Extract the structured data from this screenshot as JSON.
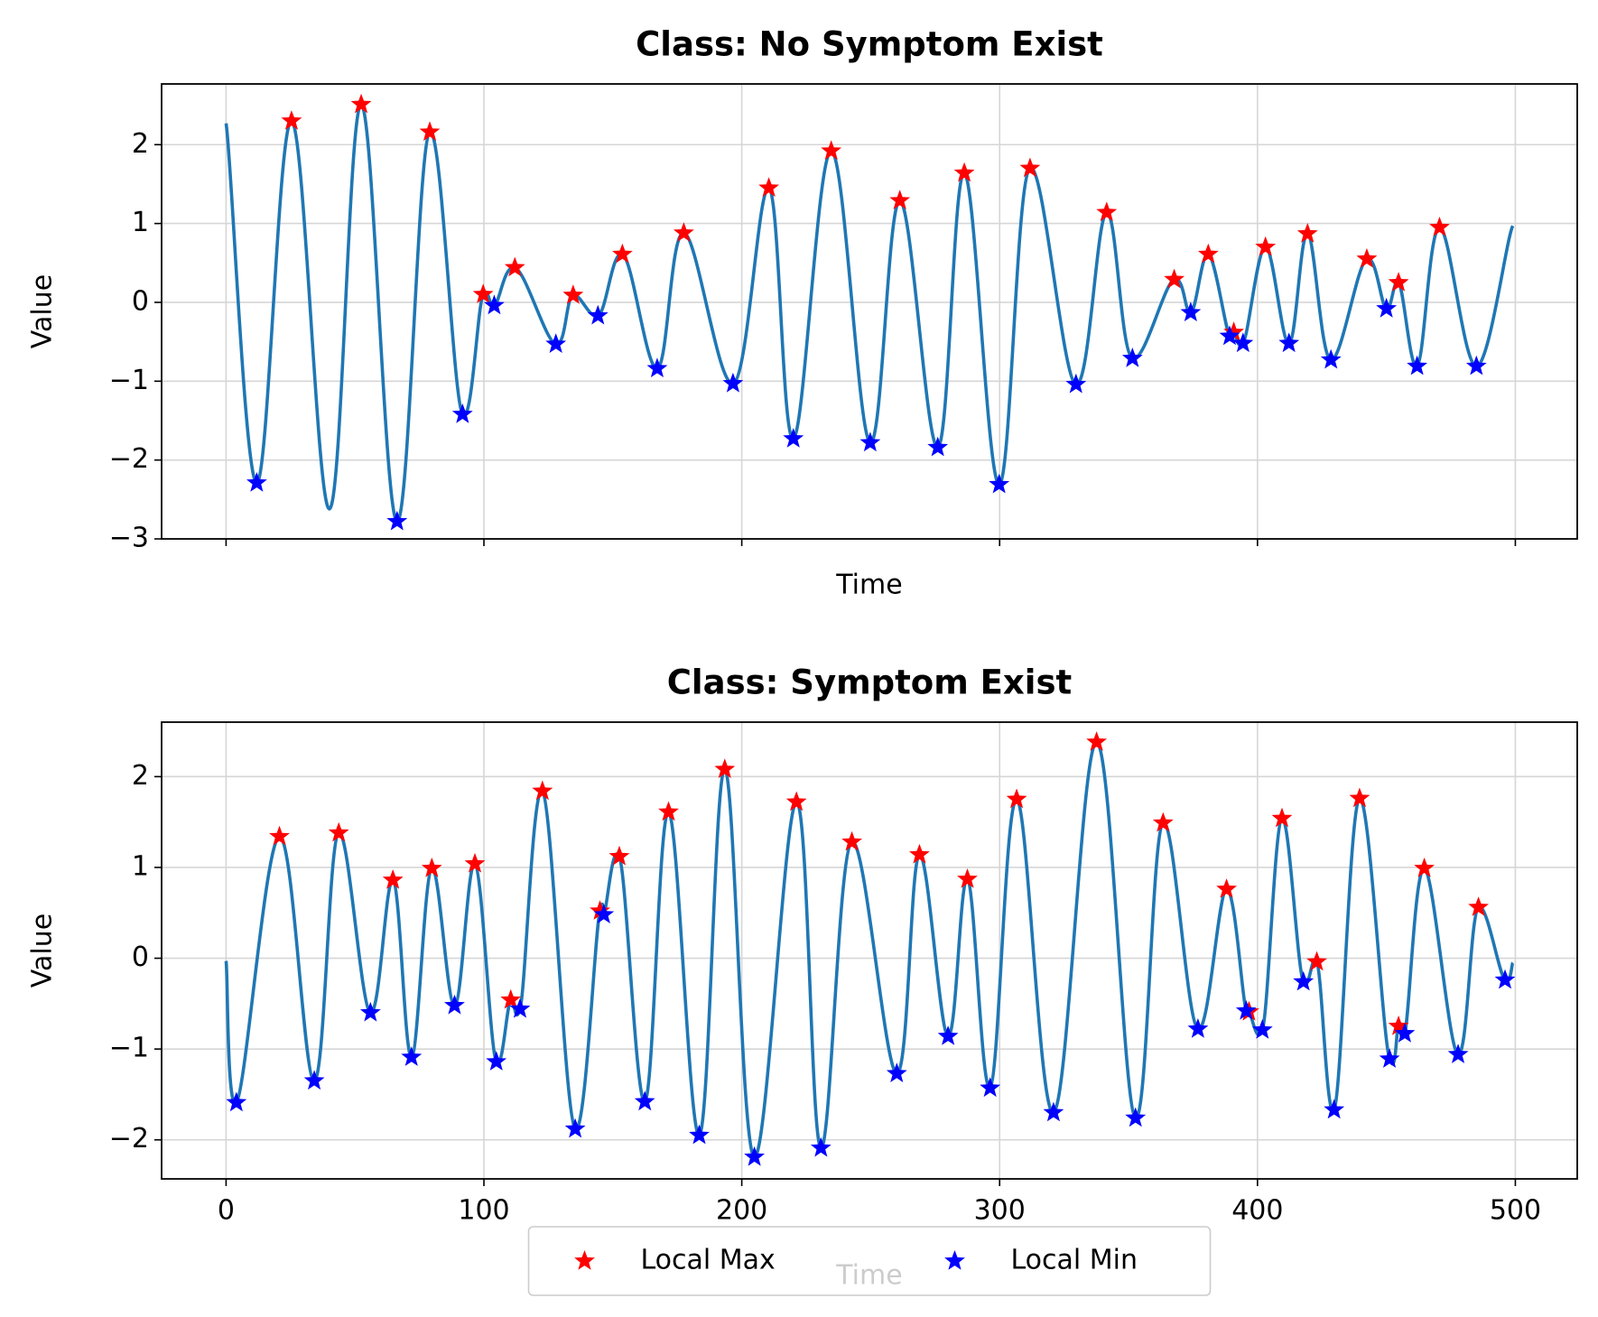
{
  "chart_data": [
    {
      "type": "line",
      "title": "Class: No Symptom Exist",
      "xlabel": "Time",
      "ylabel": "Value",
      "xlim": [
        -25,
        524
      ],
      "ylim": [
        -3,
        2.77
      ],
      "xticks": [
        0,
        100,
        200,
        300,
        400,
        500
      ],
      "xtick_labels": false,
      "yticks": [
        {
          "value": -3,
          "label": "−3"
        },
        {
          "value": -2,
          "label": "−2"
        },
        {
          "value": -1,
          "label": "−1"
        },
        0,
        1,
        2
      ],
      "grid": true,
      "series": [
        {
          "color": "#1f77b4",
          "x": [
            0,
            11.9,
            25.4,
            40.1,
            52.4,
            66.3,
            79,
            91.7,
            99.7,
            104,
            112,
            127.9,
            134.6,
            144.2,
            153.7,
            167.2,
            177.5,
            196.6,
            210.5,
            220,
            234.7,
            249.8,
            261.3,
            276,
            286.3,
            299.8,
            311.8,
            329.6,
            341.5,
            351.5,
            367.7,
            374.1,
            380.9,
            389.2,
            390.8,
            394.4,
            403.1,
            412.2,
            419.4,
            428.5,
            442.4,
            450,
            454.7,
            461.9,
            470.6,
            484.9,
            499
          ],
          "values": [
            2.27,
            -2.29,
            2.3,
            -2.62,
            2.51,
            -2.78,
            2.16,
            -1.42,
            0.1,
            -0.04,
            0.44,
            -0.53,
            0.09,
            -0.17,
            0.61,
            -0.84,
            0.88,
            -1.03,
            1.45,
            -1.73,
            1.92,
            -1.78,
            1.29,
            -1.84,
            1.64,
            -2.31,
            1.7,
            -1.04,
            1.14,
            -0.71,
            0.29,
            -0.13,
            0.61,
            -0.43,
            -0.38,
            -0.52,
            0.7,
            -0.52,
            0.87,
            -0.73,
            0.55,
            -0.08,
            0.25,
            -0.81,
            0.95,
            -0.81,
            0.97
          ]
        },
        {
          "color": "red",
          "marker": "*",
          "x": [
            25.4,
            52.4,
            79,
            99.7,
            112,
            134.6,
            153.7,
            177.5,
            210.5,
            234.7,
            261.3,
            286.3,
            311.8,
            341.5,
            367.7,
            380.9,
            390.8,
            403.1,
            419.4,
            442.4,
            454.7,
            470.6
          ],
          "values": [
            2.3,
            2.51,
            2.16,
            0.1,
            0.44,
            0.09,
            0.61,
            0.88,
            1.45,
            1.92,
            1.29,
            1.64,
            1.7,
            1.14,
            0.29,
            0.61,
            -0.38,
            0.7,
            0.87,
            0.55,
            0.25,
            0.95
          ]
        },
        {
          "color": "blue",
          "marker": "*",
          "x": [
            11.9,
            66.3,
            91.7,
            104,
            127.9,
            144.2,
            167.2,
            196.6,
            220,
            249.8,
            276,
            299.8,
            329.6,
            351.5,
            374.1,
            389.2,
            394.4,
            412.2,
            428.5,
            450,
            461.9,
            484.9
          ],
          "values": [
            -2.29,
            -2.78,
            -1.42,
            -0.04,
            -0.53,
            -0.17,
            -0.84,
            -1.03,
            -1.73,
            -1.78,
            -1.84,
            -2.31,
            -1.04,
            -0.71,
            -0.13,
            -0.43,
            -0.52,
            -0.52,
            -0.73,
            -0.08,
            -0.81,
            -0.81
          ]
        }
      ]
    },
    {
      "type": "line",
      "title": "Class: Symptom Exist",
      "xlabel": "Time",
      "ylabel": "Value",
      "xlim": [
        -25,
        524
      ],
      "ylim": [
        -2.43,
        2.6
      ],
      "xticks": [
        0,
        100,
        200,
        300,
        400,
        500
      ],
      "yticks": [
        {
          "value": -2,
          "label": "−2"
        },
        {
          "value": -1,
          "label": "−1"
        },
        0,
        1,
        2
      ],
      "grid": true,
      "legend": "lower center",
      "series": [
        {
          "color": "#1f77b4",
          "x": [
            0,
            4,
            20.7,
            34.2,
            43.7,
            56,
            64.7,
            71.9,
            79.8,
            88.6,
            96.5,
            104.8,
            110.4,
            114,
            122.7,
            135.4,
            145,
            146.5,
            152.5,
            162.4,
            171.6,
            183.5,
            193.4,
            204.9,
            221.2,
            230.7,
            242.7,
            260.1,
            268.9,
            280,
            287.5,
            296.3,
            306.6,
            320.9,
            337.6,
            352.7,
            363.4,
            376.9,
            388,
            395.6,
            396.7,
            401.9,
            409.5,
            417.8,
            423,
            429.7,
            439.6,
            451.2,
            454.7,
            457.1,
            464.7,
            477.8,
            485.7,
            496,
            499
          ],
          "values": [
            -0.03,
            -1.59,
            1.34,
            -1.35,
            1.38,
            -0.6,
            0.86,
            -1.09,
            0.99,
            -0.52,
            1.04,
            -1.14,
            -0.46,
            -0.56,
            1.84,
            -1.88,
            0.52,
            0.48,
            1.12,
            -1.58,
            1.61,
            -1.95,
            2.08,
            -2.19,
            1.72,
            -2.09,
            1.28,
            -1.27,
            1.14,
            -0.86,
            0.87,
            -1.43,
            1.75,
            -1.7,
            2.38,
            -1.76,
            1.49,
            -0.78,
            0.76,
            -0.58,
            -0.59,
            -0.79,
            1.54,
            -0.26,
            -0.04,
            -1.67,
            1.76,
            -1.11,
            -0.75,
            -0.83,
            0.99,
            -1.06,
            0.56,
            -0.24,
            -0.05
          ]
        },
        {
          "name": "Local Max",
          "color": "red",
          "marker": "*",
          "x": [
            20.7,
            43.7,
            64.7,
            79.8,
            96.5,
            110.4,
            122.7,
            145,
            152.5,
            171.6,
            193.4,
            221.2,
            242.7,
            268.9,
            287.5,
            306.6,
            337.6,
            363.4,
            388,
            396.7,
            409.5,
            423,
            439.6,
            454.7,
            464.7,
            485.7
          ],
          "values": [
            1.34,
            1.38,
            0.86,
            0.99,
            1.04,
            -0.46,
            1.84,
            0.52,
            1.12,
            1.61,
            2.08,
            1.72,
            1.28,
            1.14,
            0.87,
            1.75,
            2.38,
            1.49,
            0.76,
            -0.59,
            1.54,
            -0.04,
            1.76,
            -0.75,
            0.99,
            0.56
          ]
        },
        {
          "name": "Local Min",
          "color": "blue",
          "marker": "*",
          "x": [
            4,
            34.2,
            56,
            71.9,
            88.6,
            104.8,
            114,
            135.4,
            146.5,
            162.4,
            183.5,
            204.9,
            230.7,
            260.1,
            280,
            296.3,
            320.9,
            352.7,
            376.9,
            395.6,
            401.9,
            417.8,
            429.7,
            451.2,
            457.1,
            477.8,
            496
          ],
          "values": [
            -1.59,
            -1.35,
            -0.6,
            -1.09,
            -0.52,
            -1.14,
            -0.56,
            -1.88,
            0.48,
            -1.58,
            -1.95,
            -2.19,
            -2.09,
            -1.27,
            -0.86,
            -1.43,
            -1.7,
            -1.76,
            -0.78,
            -0.58,
            -0.79,
            -0.26,
            -1.67,
            -1.11,
            -0.83,
            -1.06,
            -0.24
          ]
        }
      ]
    }
  ]
}
